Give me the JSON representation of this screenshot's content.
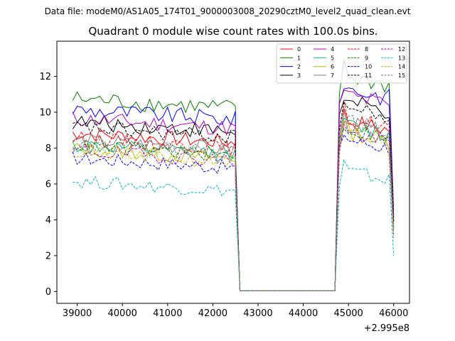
{
  "suptitle": "Data file: modeM0/AS1A05_174T01_9000003008_20290cztM0_level2_quad_clean.evt",
  "chart_data": {
    "type": "line",
    "title": "Quadrant 0 module wise count rates with 100.0s bins.",
    "xlabel": "",
    "ylabel": "",
    "x_offset_label": "+2.995e8",
    "xlim": [
      38550,
      46350
    ],
    "ylim": [
      -0.66,
      13.96
    ],
    "x_ticks": [
      39000,
      40000,
      41000,
      42000,
      43000,
      44000,
      45000,
      46000
    ],
    "x_tick_labels": [
      "39000",
      "40000",
      "41000",
      "42000",
      "43000",
      "44000",
      "45000",
      "46000"
    ],
    "y_ticks": [
      0,
      2,
      4,
      6,
      8,
      10,
      12
    ],
    "y_tick_labels": [
      "0",
      "2",
      "4",
      "6",
      "8",
      "10",
      "12"
    ],
    "legend": {
      "position": "top-right",
      "columns": 4
    },
    "segments": {
      "active_1": {
        "x_start": 38900,
        "x_end": 42500,
        "step": 100
      },
      "drop_1": {
        "x": 42600,
        "value": 0.05
      },
      "gap": {
        "x_start": 42600,
        "x_end": 44700,
        "value": 0.05
      },
      "active_2": {
        "x_start": 44800,
        "x_end": 45900,
        "step": 100
      },
      "final_x": 46000
    },
    "series": [
      {
        "name": "0",
        "color": "#ff0000",
        "dash": "solid",
        "level1": 8.3,
        "level2": 9.6,
        "end1": 7.0,
        "end2": 4.0
      },
      {
        "name": "1",
        "color": "#008000",
        "dash": "solid",
        "level1": 10.2,
        "level2": 12.1,
        "end1": 7.8,
        "end2": 4.5
      },
      {
        "name": "2",
        "color": "#0000ff",
        "dash": "solid",
        "level1": 9.6,
        "level2": 11.4,
        "end1": 7.4,
        "end2": 4.2
      },
      {
        "name": "3",
        "color": "#000000",
        "dash": "solid",
        "level1": 8.9,
        "level2": 10.6,
        "end1": 7.2,
        "end2": 3.9
      },
      {
        "name": "4",
        "color": "#bf00bf",
        "dash": "solid",
        "level1": 9.1,
        "level2": 11.0,
        "end1": 7.3,
        "end2": 4.1
      },
      {
        "name": "5",
        "color": "#00bf7f",
        "dash": "solid",
        "level1": 7.6,
        "level2": 9.3,
        "end1": 6.7,
        "end2": 3.5
      },
      {
        "name": "6",
        "color": "#bfbf00",
        "dash": "solid",
        "level1": 7.4,
        "level2": 9.0,
        "end1": 6.6,
        "end2": 3.3
      },
      {
        "name": "7",
        "color": "#7f7f7f",
        "dash": "solid",
        "level1": 7.9,
        "level2": 9.4,
        "end1": 6.8,
        "end2": 3.6
      },
      {
        "name": "8",
        "color": "#ff0000",
        "dash": "dashed",
        "level1": 8.0,
        "level2": 9.8,
        "end1": 6.9,
        "end2": 3.8
      },
      {
        "name": "9",
        "color": "#008000",
        "dash": "dashed",
        "level1": 7.6,
        "level2": 9.1,
        "end1": 6.7,
        "end2": 3.5
      },
      {
        "name": "10",
        "color": "#0000ff",
        "dash": "dashed",
        "level1": 6.9,
        "level2": 8.6,
        "end1": 6.2,
        "end2": 3.0
      },
      {
        "name": "11",
        "color": "#000000",
        "dash": "dashed",
        "level1": 8.6,
        "level2": 10.3,
        "end1": 7.1,
        "end2": 3.9
      },
      {
        "name": "12",
        "color": "#bf00bf",
        "dash": "dashed",
        "level1": 7.3,
        "level2": 8.9,
        "end1": 6.5,
        "end2": 3.2
      },
      {
        "name": "13",
        "color": "#00bfbf",
        "dash": "dashed",
        "level1": 5.6,
        "level2": 6.8,
        "end1": 5.2,
        "end2": 2.0
      },
      {
        "name": "14",
        "color": "#bfbf00",
        "dash": "dashed",
        "level1": 7.2,
        "level2": 8.8,
        "end1": 6.4,
        "end2": 3.1
      },
      {
        "name": "15",
        "color": "#7f7f7f",
        "dash": "dashed",
        "level1": 7.8,
        "level2": 9.5,
        "end1": 6.8,
        "end2": 3.6
      }
    ]
  }
}
